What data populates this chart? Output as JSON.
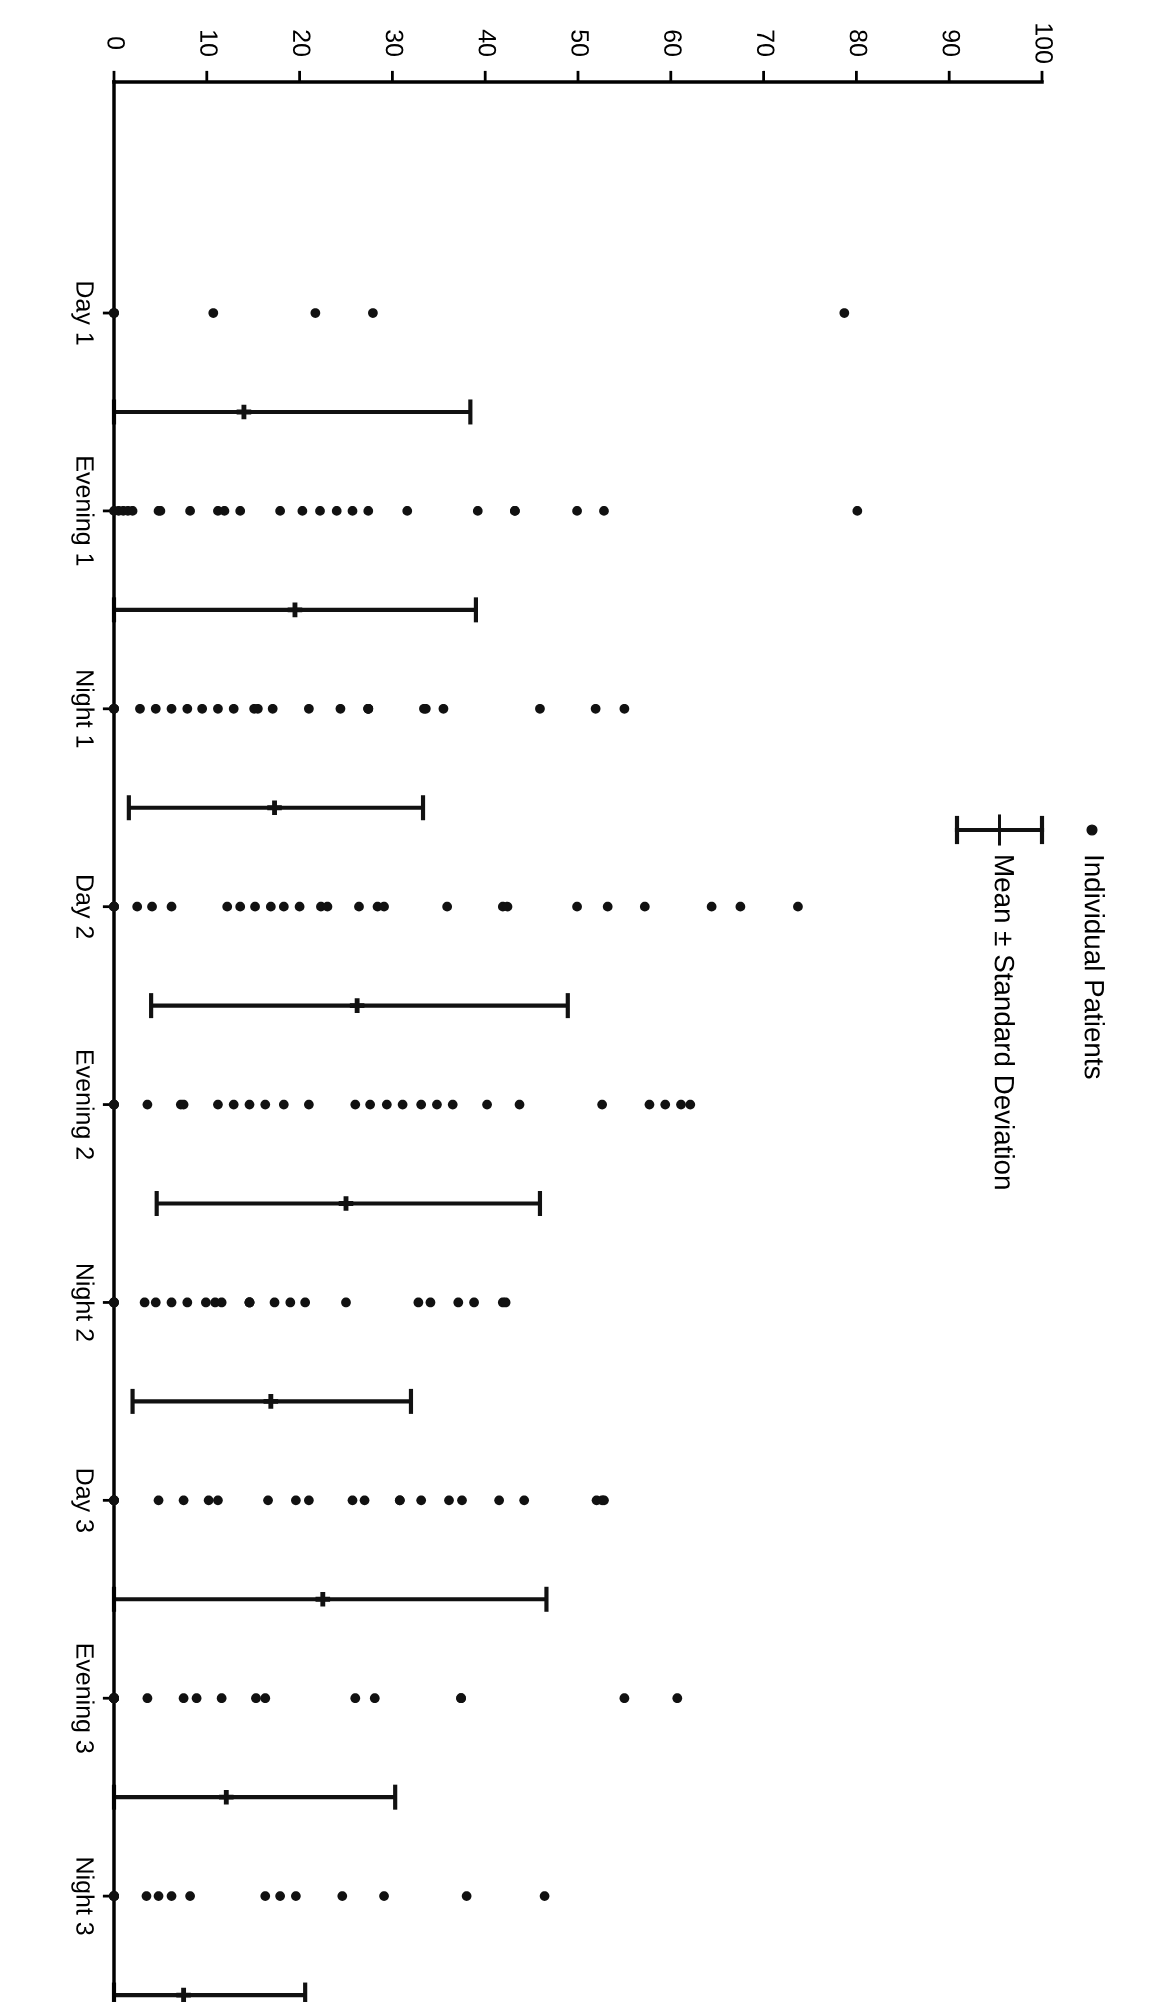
{
  "chart_data": {
    "type": "scatter",
    "orientation": "horizontal",
    "categories": [
      "Day 1",
      null,
      "Evening 1",
      null,
      "Night 1",
      null,
      "Day 2",
      null,
      "Evening 2",
      null,
      "Night 2",
      null,
      "Day 3",
      null,
      "Evening 3",
      null,
      "Night 3",
      null
    ],
    "x2lim": [
      0,
      100
    ],
    "x2ticks": [
      0,
      10,
      20,
      30,
      40,
      50,
      60,
      70,
      80,
      90,
      100
    ],
    "tick_labels": "x2",
    "grid": false,
    "legend": "right",
    "series": [
      {
        "name": "Individual Patients",
        "type": "scatter",
        "axis": "x2",
        "marker": "circle",
        "color": "#111111",
        "x": [
          "Day 1",
          "Day 1",
          "Day 1",
          "Day 1",
          "Day 1",
          "Day 1",
          "Day 1",
          "Evening 1",
          "Evening 1",
          "Evening 1",
          "Evening 1",
          "Evening 1",
          "Evening 1",
          "Evening 1",
          "Evening 1",
          "Evening 1",
          "Evening 1",
          "Evening 1",
          "Evening 1",
          "Evening 1",
          "Evening 1",
          "Evening 1",
          "Evening 1",
          "Evening 1",
          "Evening 1",
          "Evening 1",
          "Evening 1",
          "Evening 1",
          "Evening 1",
          "Evening 1",
          "Evening 1",
          "Night 1",
          "Night 1",
          "Night 1",
          "Night 1",
          "Night 1",
          "Night 1",
          "Night 1",
          "Night 1",
          "Night 1",
          "Night 1",
          "Night 1",
          "Night 1",
          "Night 1",
          "Night 1",
          "Night 1",
          "Night 1",
          "Night 1",
          "Night 1",
          "Night 1",
          "Night 1",
          "Night 1",
          "Night 1",
          "Night 1",
          "Night 1",
          "Day 2",
          "Day 2",
          "Day 2",
          "Day 2",
          "Day 2",
          "Day 2",
          "Day 2",
          "Day 2",
          "Day 2",
          "Day 2",
          "Day 2",
          "Day 2",
          "Day 2",
          "Day 2",
          "Day 2",
          "Day 2",
          "Day 2",
          "Day 2",
          "Day 2",
          "Day 2",
          "Day 2",
          "Day 2",
          "Day 2",
          "Day 2",
          "Day 2",
          "Day 2",
          "Evening 2",
          "Evening 2",
          "Evening 2",
          "Evening 2",
          "Evening 2",
          "Evening 2",
          "Evening 2",
          "Evening 2",
          "Evening 2",
          "Evening 2",
          "Evening 2",
          "Evening 2",
          "Evening 2",
          "Evening 2",
          "Evening 2",
          "Evening 2",
          "Evening 2",
          "Evening 2",
          "Evening 2",
          "Evening 2",
          "Evening 2",
          "Evening 2",
          "Evening 2",
          "Evening 2",
          "Evening 2",
          "Evening 2",
          "Night 2",
          "Night 2",
          "Night 2",
          "Night 2",
          "Night 2",
          "Night 2",
          "Night 2",
          "Night 2",
          "Night 2",
          "Night 2",
          "Night 2",
          "Night 2",
          "Night 2",
          "Night 2",
          "Night 2",
          "Night 2",
          "Night 2",
          "Night 2",
          "Night 2",
          "Night 2",
          "Night 2",
          "Night 2",
          "Night 2",
          "Day 3",
          "Day 3",
          "Day 3",
          "Day 3",
          "Day 3",
          "Day 3",
          "Day 3",
          "Day 3",
          "Day 3",
          "Day 3",
          "Day 3",
          "Day 3",
          "Day 3",
          "Day 3",
          "Day 3",
          "Day 3",
          "Day 3",
          "Day 3",
          "Day 3",
          "Day 3",
          "Day 3",
          "Day 3",
          "Day 3",
          "Evening 3",
          "Evening 3",
          "Evening 3",
          "Evening 3",
          "Evening 3",
          "Evening 3",
          "Evening 3",
          "Evening 3",
          "Evening 3",
          "Evening 3",
          "Evening 3",
          "Evening 3",
          "Evening 3",
          "Evening 3",
          "Evening 3",
          "Evening 3",
          "Evening 3",
          "Evening 3",
          "Night 3",
          "Night 3",
          "Night 3",
          "Night 3",
          "Night 3",
          "Night 3",
          "Night 3",
          "Night 3",
          "Night 3",
          "Night 3",
          "Night 3",
          "Night 3",
          "Night 3",
          "Night 3",
          "Night 3",
          "Night 3",
          "Night 3"
        ],
        "values": [
          0,
          0,
          0,
          10.7,
          21.7,
          27.9,
          78.7,
          0,
          0.5,
          1,
          1.5,
          2,
          4.8,
          5,
          8.2,
          11.2,
          11.9,
          13.6,
          17.9,
          20.3,
          22.2,
          24,
          25.7,
          27.4,
          31.6,
          39.2,
          43.2,
          43.2,
          49.9,
          52.8,
          80.1,
          0,
          0,
          0,
          2.8,
          4.5,
          6.2,
          7.9,
          9.5,
          11.2,
          12.9,
          15.1,
          15.5,
          17.1,
          21,
          24.4,
          27.4,
          27.4,
          27.4,
          33.4,
          33.6,
          35.5,
          45.9,
          51.9,
          55,
          0,
          0,
          0,
          2.5,
          4.1,
          6.2,
          12.2,
          13.6,
          15.2,
          16.9,
          18.3,
          20,
          22.3,
          23,
          26.4,
          28.4,
          29.1,
          35.9,
          41.9,
          42.4,
          49.9,
          53.2,
          57.2,
          64.4,
          67.5,
          73.7,
          0,
          0,
          0,
          3.6,
          7.2,
          7.5,
          11.2,
          12.9,
          14.6,
          16.3,
          18.3,
          21,
          26,
          27.6,
          29.4,
          31.1,
          33.1,
          34.8,
          36.5,
          40.2,
          43.7,
          52.6,
          57.7,
          59.4,
          61.1,
          62.1,
          0,
          0,
          0,
          3.3,
          4.5,
          6.2,
          7.9,
          9.9,
          10.9,
          11.6,
          14.6,
          14.6,
          14.6,
          17.3,
          19,
          20.6,
          25,
          32.8,
          34.1,
          37.1,
          38.8,
          41.9,
          42.2,
          0,
          0,
          0,
          0,
          4.8,
          7.5,
          10.2,
          11.2,
          16.6,
          19.6,
          21,
          25.7,
          27,
          30.8,
          30.8,
          33.1,
          36.1,
          37.5,
          41.5,
          44.2,
          52,
          52.8,
          52.6,
          0,
          0,
          0,
          0,
          0,
          0,
          3.6,
          7.5,
          8.9,
          11.6,
          15.3,
          16.3,
          26,
          28.1,
          37.4,
          37.4,
          55,
          60.7,
          0,
          0,
          0,
          0,
          0,
          0,
          3.5,
          4.8,
          6.2,
          8.2,
          16.3,
          17.9,
          19.6,
          24.6,
          29.1,
          38,
          46.4
        ]
      },
      {
        "name": "Mean ± Standard Deviation",
        "type": "scatter",
        "axis": "x2",
        "marker": "cross",
        "color": "#111111",
        "values": [
          null,
          14.0,
          null,
          19.5,
          null,
          17.3,
          null,
          26.2,
          null,
          25,
          null,
          16.9,
          null,
          22.5,
          null,
          12.1,
          null,
          7.5
        ],
        "errors": [
          null,
          [
            0,
            38.4
          ],
          null,
          [
            0,
            39
          ],
          null,
          [
            1.6,
            33.3
          ],
          null,
          [
            4.0,
            48.9
          ],
          null,
          [
            4.6,
            45.9
          ],
          null,
          [
            2.0,
            32
          ],
          null,
          [
            0,
            46.6
          ],
          null,
          [
            0,
            30.3
          ],
          null,
          [
            0,
            20.6
          ]
        ]
      }
    ]
  }
}
